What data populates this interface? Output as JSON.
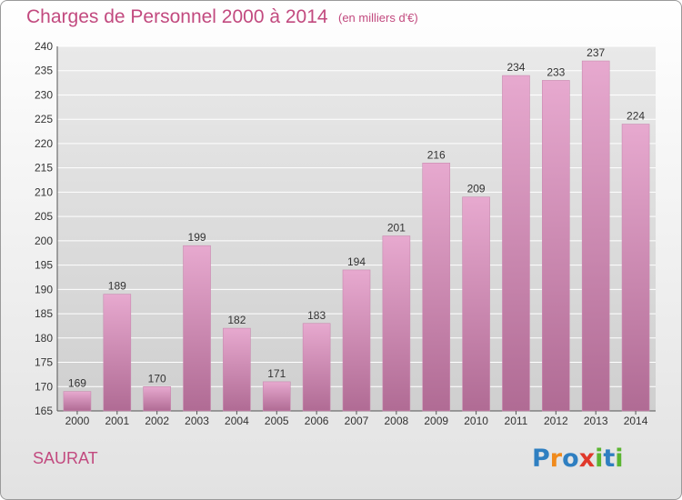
{
  "header": {
    "title": "Charges de Personnel 2000 à 2014",
    "subtitle": "(en milliers d'€)"
  },
  "footer": {
    "commune": "SAURAT",
    "logo": [
      "P",
      "r",
      "o",
      "x",
      "i",
      "t",
      "i"
    ],
    "logo_colors": [
      "#2f7fc1",
      "#f08a1c",
      "#2f7fc1",
      "#e0392b",
      "#5bb531",
      "#2f7fc1",
      "#5bb531"
    ]
  },
  "colors": {
    "bar_top": "#e7a9cf",
    "bar_bottom": "#b06b94",
    "title": "#c24a7f",
    "grid": "#ffffff"
  },
  "chart_data": {
    "type": "bar",
    "categories": [
      "2000",
      "2001",
      "2002",
      "2003",
      "2004",
      "2005",
      "2006",
      "2007",
      "2008",
      "2009",
      "2010",
      "2011",
      "2012",
      "2013",
      "2014"
    ],
    "values": [
      169,
      189,
      170,
      199,
      182,
      171,
      183,
      194,
      201,
      216,
      209,
      234,
      233,
      237,
      224
    ],
    "ylim": [
      165,
      240
    ],
    "yticks": [
      165,
      170,
      175,
      180,
      185,
      190,
      195,
      200,
      205,
      210,
      215,
      220,
      225,
      230,
      235,
      240
    ],
    "grid": true,
    "legend": "none"
  }
}
